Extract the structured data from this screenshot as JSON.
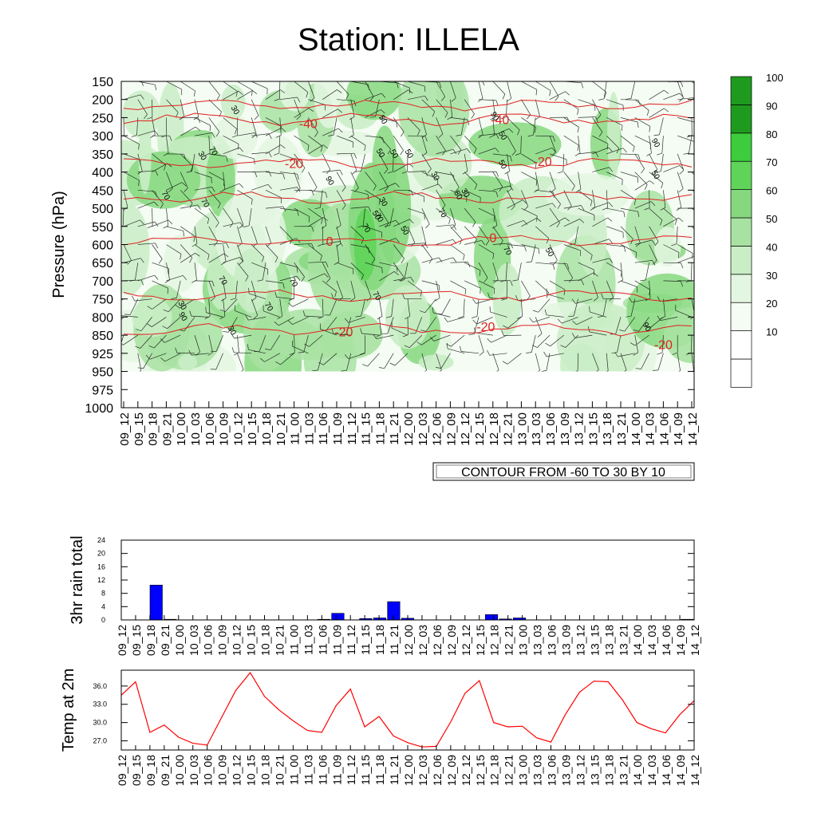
{
  "page_title": "Station: ILLELA",
  "time_labels": [
    "09_12",
    "09_15",
    "09_18",
    "09_21",
    "10_00",
    "10_03",
    "10_06",
    "10_09",
    "10_12",
    "10_15",
    "10_18",
    "10_21",
    "11_00",
    "11_03",
    "11_06",
    "11_09",
    "11_12",
    "11_15",
    "11_18",
    "11_21",
    "12_00",
    "12_03",
    "12_06",
    "12_09",
    "12_12",
    "12_15",
    "12_18",
    "12_21",
    "13_00",
    "13_03",
    "13_06",
    "13_09",
    "13_12",
    "13_15",
    "13_18",
    "13_21",
    "14_00",
    "14_03",
    "14_06",
    "14_09",
    "14_12"
  ],
  "chart_data": [
    {
      "type": "heatmap",
      "title": "Station: ILLELA",
      "ylabel": "Pressure (hPa)",
      "y_ticks": [
        "150",
        "200",
        "250",
        "300",
        "350",
        "400",
        "450",
        "500",
        "550",
        "600",
        "650",
        "700",
        "750",
        "800",
        "850",
        "925",
        "950",
        "975",
        "1000"
      ],
      "fill_variable": "relative humidity (green shading)",
      "colorbar_levels": [
        "10",
        "20",
        "30",
        "40",
        "50",
        "60",
        "70",
        "80",
        "90",
        "100"
      ],
      "colorbar_colors": [
        "#ffffff",
        "#ffffff",
        "#f4fcf3",
        "#e3f6e1",
        "#c9edc5",
        "#a8e2a2",
        "#86d87f",
        "#5fd459",
        "#3ccc3c",
        "#1e9b1e"
      ],
      "temperature_contour_labels": [
        "-40",
        "-40",
        "-20",
        "-20",
        "0",
        "0",
        "-20",
        "-20",
        "-20"
      ],
      "humidity_contour_labels": [
        "50",
        "30",
        "70",
        "30",
        "50",
        "70",
        "90",
        "50",
        "50",
        "70",
        "30",
        "90",
        "70",
        "90",
        "70",
        "50",
        "30",
        "50",
        "30",
        "70",
        "90",
        "90",
        "70",
        "50",
        "30",
        "50",
        "70",
        "50",
        "70",
        "70",
        "50",
        "50",
        "70",
        "30"
      ],
      "info_box": "CONTOUR FROM -60 TO 30 BY 10"
    },
    {
      "type": "bar",
      "ylabel": "3hr rain total",
      "y_ticks": [
        "0",
        "4",
        "8",
        "12",
        "16",
        "20",
        "24"
      ],
      "ylim": [
        0,
        24
      ],
      "bar_color": "#0000ff",
      "values": [
        0,
        0,
        10.5,
        0.2,
        0,
        0,
        0,
        0,
        0,
        0,
        0,
        0,
        0,
        0,
        0.2,
        2,
        0,
        0.4,
        0.6,
        5.5,
        0.5,
        0,
        0,
        0,
        0,
        0,
        1.6,
        0.3,
        0.6,
        0,
        0,
        0,
        0,
        0,
        0,
        0,
        0,
        0,
        0,
        0,
        0.2
      ]
    },
    {
      "type": "line",
      "ylabel": "Temp at 2m",
      "y_ticks": [
        "27.0",
        "30.0",
        "33.0",
        "36.0"
      ],
      "ylim": [
        25.5,
        38.6
      ],
      "line_color": "#ff0000",
      "values": [
        34.5,
        36.7,
        28.4,
        29.6,
        27.6,
        26.6,
        26.3,
        30.8,
        35.3,
        38.2,
        34.3,
        32.1,
        30.3,
        28.7,
        28.4,
        32.8,
        35.5,
        29.3,
        31.0,
        27.8,
        26.7,
        26.0,
        26.1,
        30.1,
        34.8,
        36.9,
        30.0,
        29.3,
        29.4,
        27.5,
        26.8,
        31.3,
        35.0,
        36.8,
        36.7,
        33.7,
        30.0,
        29.0,
        28.3,
        31.3,
        33.6
      ]
    }
  ]
}
